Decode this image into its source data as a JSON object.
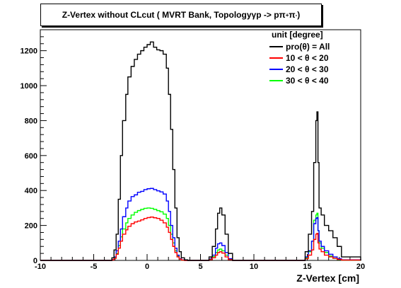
{
  "chart_data": {
    "type": "line",
    "title": {
      "prefix": "Z-Vertex  without CLcut ( MVRT Bank, Topology ",
      "gamma": "γ",
      "mid": " p -> p ",
      "pi": "π",
      "sup_plus": "+",
      "space": " ",
      "sup_minus": "-",
      "suffix": " )"
    },
    "xlabel": "Z-Vertex [cm]",
    "ylabel": "",
    "xlim": [
      -10,
      20
    ],
    "ylim": [
      0,
      1320
    ],
    "x_ticks": [
      -10,
      -5,
      0,
      5,
      10,
      15,
      20
    ],
    "y_ticks": [
      0,
      200,
      400,
      600,
      800,
      1000,
      1200
    ],
    "grid": false,
    "legend_position": "top-right",
    "legend_header": "unit [degree]",
    "series": [
      {
        "name": "pro(θ) = All",
        "color": "#000000",
        "x": [
          -10,
          -3.6,
          -3.3,
          -3.1,
          -2.9,
          -2.7,
          -2.5,
          -2.3,
          -2.0,
          -1.8,
          -1.5,
          -1.2,
          -0.9,
          -0.6,
          -0.3,
          0.0,
          0.3,
          0.6,
          0.9,
          1.2,
          1.5,
          1.8,
          2.0,
          2.2,
          2.4,
          2.6,
          2.8,
          3.0,
          3.2,
          3.5,
          3.8,
          5.4,
          5.8,
          6.1,
          6.4,
          6.6,
          6.8,
          7.0,
          7.3,
          7.6,
          8.0,
          14.4,
          14.8,
          15.1,
          15.4,
          15.6,
          15.8,
          15.9,
          16.0,
          16.1,
          16.3,
          16.6,
          17.0,
          17.4,
          17.8,
          18.2,
          20
        ],
        "y": [
          0,
          0,
          15,
          60,
          150,
          350,
          600,
          800,
          950,
          1050,
          1110,
          1150,
          1180,
          1200,
          1220,
          1235,
          1250,
          1220,
          1205,
          1200,
          1180,
          1100,
          950,
          750,
          520,
          300,
          130,
          50,
          15,
          3,
          0,
          0,
          20,
          80,
          180,
          270,
          300,
          260,
          150,
          40,
          0,
          0,
          50,
          150,
          280,
          560,
          800,
          850,
          560,
          300,
          260,
          200,
          170,
          130,
          80,
          20,
          0
        ]
      },
      {
        "name": "10 < θ < 20",
        "color": "#ff0000",
        "x": [
          -10,
          -3.6,
          -3.3,
          -3.1,
          -2.9,
          -2.7,
          -2.5,
          -2.3,
          -2.0,
          -1.8,
          -1.5,
          -1.2,
          -0.9,
          -0.6,
          -0.3,
          0.0,
          0.3,
          0.6,
          0.9,
          1.2,
          1.5,
          1.8,
          2.0,
          2.2,
          2.4,
          2.6,
          2.8,
          3.0,
          3.2,
          3.5,
          3.8,
          5.4,
          5.8,
          6.1,
          6.4,
          6.6,
          6.8,
          7.0,
          7.3,
          7.6,
          8.0,
          14.4,
          14.8,
          15.1,
          15.4,
          15.6,
          15.8,
          15.9,
          16.0,
          16.1,
          16.3,
          16.6,
          17.0,
          17.4,
          17.8,
          18.2,
          20
        ],
        "y": [
          0,
          0,
          3,
          12,
          35,
          70,
          110,
          150,
          175,
          195,
          210,
          220,
          225,
          232,
          240,
          245,
          248,
          244,
          240,
          230,
          215,
          190,
          160,
          120,
          80,
          45,
          20,
          8,
          2,
          0,
          0,
          0,
          5,
          15,
          30,
          45,
          50,
          42,
          20,
          5,
          0,
          0,
          10,
          30,
          60,
          120,
          150,
          155,
          100,
          65,
          50,
          30,
          20,
          12,
          6,
          2,
          0
        ]
      },
      {
        "name": "20 < θ < 30",
        "color": "#0000ff",
        "x": [
          -10,
          -3.6,
          -3.3,
          -3.1,
          -2.9,
          -2.7,
          -2.5,
          -2.3,
          -2.0,
          -1.8,
          -1.5,
          -1.2,
          -0.9,
          -0.6,
          -0.3,
          0.0,
          0.3,
          0.6,
          0.9,
          1.2,
          1.5,
          1.8,
          2.0,
          2.2,
          2.4,
          2.6,
          2.8,
          3.0,
          3.2,
          3.5,
          3.8,
          5.4,
          5.8,
          6.1,
          6.4,
          6.6,
          6.8,
          7.0,
          7.3,
          7.6,
          8.0,
          14.4,
          14.8,
          15.1,
          15.4,
          15.6,
          15.8,
          15.9,
          16.0,
          16.1,
          16.3,
          16.6,
          17.0,
          17.4,
          17.8,
          18.2,
          20
        ],
        "y": [
          0,
          0,
          5,
          20,
          55,
          110,
          180,
          250,
          300,
          340,
          365,
          375,
          390,
          395,
          405,
          410,
          412,
          405,
          398,
          392,
          380,
          340,
          280,
          200,
          130,
          70,
          30,
          10,
          3,
          0,
          0,
          0,
          8,
          30,
          70,
          95,
          100,
          85,
          45,
          10,
          0,
          0,
          20,
          55,
          110,
          210,
          240,
          245,
          170,
          110,
          80,
          55,
          35,
          20,
          10,
          3,
          0
        ]
      },
      {
        "name": "30 < θ < 40",
        "color": "#00ff00",
        "x": [
          -10,
          -3.6,
          -3.3,
          -3.1,
          -2.9,
          -2.7,
          -2.5,
          -2.3,
          -2.0,
          -1.8,
          -1.5,
          -1.2,
          -0.9,
          -0.6,
          -0.3,
          0.0,
          0.3,
          0.6,
          0.9,
          1.2,
          1.5,
          1.8,
          2.0,
          2.2,
          2.4,
          2.6,
          2.8,
          3.0,
          3.2,
          3.5,
          3.8,
          5.4,
          5.8,
          6.1,
          6.4,
          6.6,
          6.8,
          7.0,
          7.3,
          7.6,
          8.0,
          14.4,
          14.8,
          15.1,
          15.4,
          15.6,
          15.8,
          15.9,
          16.0,
          16.1,
          16.3,
          16.6,
          17.0,
          17.4,
          17.8,
          18.2,
          20
        ],
        "y": [
          0,
          0,
          4,
          15,
          40,
          85,
          135,
          180,
          215,
          240,
          260,
          275,
          285,
          292,
          298,
          300,
          298,
          292,
          285,
          278,
          265,
          240,
          200,
          150,
          100,
          55,
          25,
          8,
          2,
          0,
          0,
          0,
          6,
          22,
          45,
          60,
          65,
          55,
          30,
          8,
          0,
          0,
          15,
          50,
          110,
          230,
          260,
          270,
          170,
          100,
          70,
          45,
          25,
          12,
          5,
          2,
          0
        ]
      }
    ]
  }
}
